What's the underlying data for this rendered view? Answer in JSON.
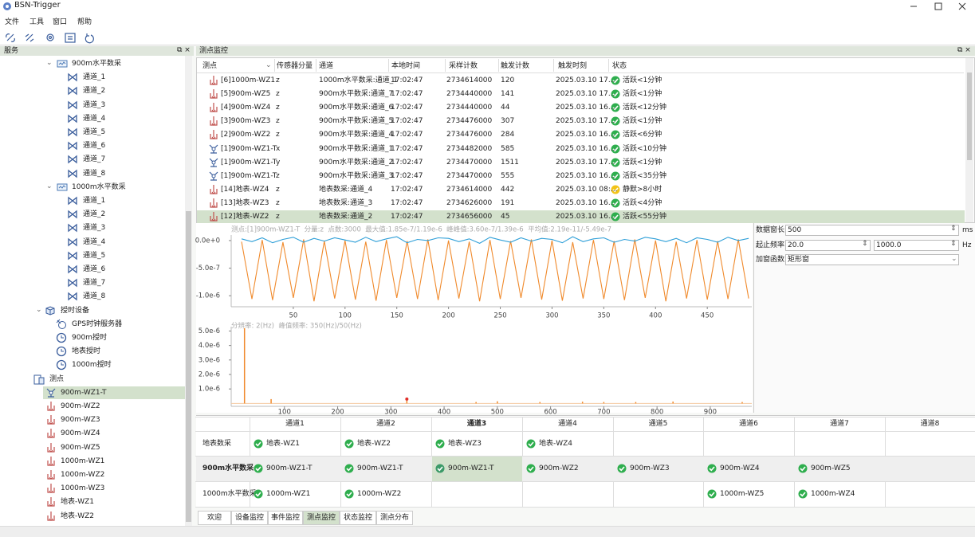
{
  "window": {
    "title": "BSN-Trigger"
  },
  "menu": [
    "文件",
    "工具",
    "窗口",
    "帮助"
  ],
  "left_panel": {
    "title": "服务",
    "tree": [
      {
        "label": "900m水平数采",
        "children": [
          "通道_1",
          "通道_2",
          "通道_3",
          "通道_4",
          "通道_5",
          "通道_6",
          "通道_7",
          "通道_8"
        ]
      },
      {
        "label": "1000m水平数采",
        "children": [
          "通道_1",
          "通道_2",
          "通道_3",
          "通道_4",
          "通道_5",
          "通道_6",
          "通道_7",
          "通道_8"
        ]
      },
      {
        "label": "授时设备",
        "children": [
          "GPS时钟服务器",
          "900m授时",
          "地表授时",
          "1000m授时"
        ]
      },
      {
        "label": "测点",
        "children": [
          "900m-WZ1-T",
          "900m-WZ2",
          "900m-WZ3",
          "900m-WZ4",
          "900m-WZ5",
          "1000m-WZ1",
          "1000m-WZ2",
          "1000m-WZ3",
          "地表-WZ1",
          "地表-WZ2"
        ]
      }
    ]
  },
  "monitor": {
    "title": "测点监控",
    "columns": [
      "测点",
      "传感器分量",
      "通道",
      "本地时间",
      "采样计数",
      "触发计数",
      "触发时刻",
      "状态"
    ],
    "rows": [
      {
        "point": "[6]1000m-WZ1",
        "component": "z",
        "channel": "1000m水平数采:通道_1",
        "local_time": "17:02:47",
        "sample_count": 2734614000,
        "trigger_count": 120,
        "trigger_time": "2025.03.10 17...",
        "status": "活跃<1分钟",
        "status_color": "#2fae4e"
      },
      {
        "point": "[5]900m-WZ5",
        "component": "z",
        "channel": "900m水平数采:通道_7",
        "local_time": "17:02:47",
        "sample_count": 2734440000,
        "trigger_count": 141,
        "trigger_time": "2025.03.10 17...",
        "status": "活跃<1分钟",
        "status_color": "#2fae4e"
      },
      {
        "point": "[4]900m-WZ4",
        "component": "z",
        "channel": "900m水平数采:通道_6",
        "local_time": "17:02:47",
        "sample_count": 2734440000,
        "trigger_count": 44,
        "trigger_time": "2025.03.10 16...",
        "status": "活跃<12分钟",
        "status_color": "#2fae4e"
      },
      {
        "point": "[3]900m-WZ3",
        "component": "z",
        "channel": "900m水平数采:通道_5",
        "local_time": "17:02:47",
        "sample_count": 2734476000,
        "trigger_count": 307,
        "trigger_time": "2025.03.10 17...",
        "status": "活跃<1分钟",
        "status_color": "#2fae4e"
      },
      {
        "point": "[2]900m-WZ2",
        "component": "z",
        "channel": "900m水平数采:通道_4",
        "local_time": "17:02:47",
        "sample_count": 2734476000,
        "trigger_count": 284,
        "trigger_time": "2025.03.10 16...",
        "status": "活跃<6分钟",
        "status_color": "#2fae4e"
      },
      {
        "point": "[1]900m-WZ1-T",
        "component": "x",
        "channel": "900m水平数采:通道_1",
        "local_time": "17:02:47",
        "sample_count": 2734482000,
        "trigger_count": 585,
        "trigger_time": "2025.03.10 16...",
        "status": "活跃<10分钟",
        "status_color": "#2fae4e"
      },
      {
        "point": "[1]900m-WZ1-T",
        "component": "y",
        "channel": "900m水平数采:通道_2",
        "local_time": "17:02:47",
        "sample_count": 2734470000,
        "trigger_count": 1511,
        "trigger_time": "2025.03.10 17...",
        "status": "活跃<1分钟",
        "status_color": "#2fae4e"
      },
      {
        "point": "[1]900m-WZ1-T",
        "component": "z",
        "channel": "900m水平数采:通道_3",
        "local_time": "17:02:47",
        "sample_count": 2734470000,
        "trigger_count": 555,
        "trigger_time": "2025.03.10 16...",
        "status": "活跃<35分钟",
        "status_color": "#2fae4e"
      },
      {
        "point": "[14]地表-WZ4",
        "component": "z",
        "channel": "地表数采:通道_4",
        "local_time": "17:02:47",
        "sample_count": 2734614000,
        "trigger_count": 442,
        "trigger_time": "2025.03.10 08:...",
        "status": "静默>8小时",
        "status_color": "#f2c318"
      },
      {
        "point": "[13]地表-WZ3",
        "component": "z",
        "channel": "地表数采:通道_3",
        "local_time": "17:02:47",
        "sample_count": 2734626000,
        "trigger_count": 191,
        "trigger_time": "2025.03.10 16...",
        "status": "活跃<4分钟",
        "status_color": "#2fae4e"
      },
      {
        "point": "[12]地表-WZ2",
        "component": "z",
        "channel": "地表数采:通道_2",
        "local_time": "17:02:47",
        "sample_count": 2734656000,
        "trigger_count": 45,
        "trigger_time": "2025.03.10 16...",
        "status": "活跃<55分钟",
        "status_color": "#2fae4e"
      }
    ]
  },
  "params": {
    "window_label": "数据窗长",
    "window_value": "500",
    "window_unit": "ms",
    "freq_label": "起止频率",
    "freq_start": "20.0",
    "freq_end": "1000.0",
    "freq_unit": "Hz",
    "func_label": "加窗函数",
    "func_value": "矩形窗"
  },
  "channel_grid": {
    "columns": [
      "通道1",
      "通道2",
      "通道3",
      "通道4",
      "通道5",
      "通道6",
      "通道7",
      "通道8"
    ],
    "rows": [
      {
        "name": "地表数采",
        "cells": [
          "地表-WZ1",
          "地表-WZ2",
          "地表-WZ3",
          "地表-WZ4",
          null,
          null,
          null,
          null
        ]
      },
      {
        "name": "900m水平数采",
        "cells": [
          "900m-WZ1-T",
          "900m-WZ1-T",
          "900m-WZ1-T",
          "900m-WZ2",
          "900m-WZ3",
          "900m-WZ4",
          "900m-WZ5",
          null
        ]
      },
      {
        "name": "1000m水平数采",
        "cells": [
          "1000m-WZ1",
          "1000m-WZ2",
          null,
          null,
          null,
          "1000m-WZ5",
          "1000m-WZ4",
          null
        ]
      }
    ]
  },
  "tabs": [
    "欢迎",
    "设备监控",
    "事件监控",
    "测点监控",
    "状态监控",
    "测点分布"
  ],
  "chart_data": [
    {
      "type": "line",
      "subtitle": "测点:[1]900m-WZ1-T  分量:z  点数:3000  最大值:1.85e-7/1.19e-6  峰峰值:3.60e-7/1.39e-6  平均值:2.19e-11/-5.49e-7",
      "x": [
        0,
        10,
        20,
        30,
        40,
        50,
        60,
        70,
        80,
        90,
        100,
        110,
        120,
        130,
        140,
        150,
        160,
        170,
        180,
        190,
        200,
        210,
        220,
        230,
        240,
        250,
        260,
        270,
        280,
        290,
        300,
        310,
        320,
        330,
        340,
        350,
        360,
        370,
        380,
        390,
        400,
        410,
        420,
        430,
        440,
        450,
        460,
        470,
        480,
        490
      ],
      "series": [
        {
          "color": "#f08a2c",
          "values": [
            -2e-08,
            -1.06e-06,
            1e-08,
            -1.08e-06,
            -3e-08,
            -1.04e-06,
            2e-08,
            -1.1e-06,
            -1e-08,
            -1.05e-06,
            0,
            -1.07e-06,
            -2e-08,
            -1.09e-06,
            1e-08,
            -1.04e-06,
            -1e-08,
            -1.06e-06,
            2e-08,
            -1.08e-06,
            0,
            -1.05e-06,
            -2e-08,
            -1.1e-06,
            1e-08,
            -1.06e-06,
            -1e-08,
            -1.04e-06,
            2e-08,
            -1.07e-06,
            0,
            -1.09e-06,
            -3e-08,
            -1.05e-06,
            1e-08,
            -1.06e-06,
            -1e-08,
            -1.08e-06,
            2e-08,
            -1.04e-06,
            0,
            -1.1e-06,
            -2e-08,
            -1.05e-06,
            1e-08,
            -1.07e-06,
            -1e-08,
            -1.06e-06,
            2e-08,
            -1.05e-06
          ]
        },
        {
          "color": "#2e9fd8",
          "values": [
            3e-08,
            -2e-08,
            5e-08,
            -4e-08,
            2e-08,
            6e-08,
            -3e-08,
            4e-08,
            -1e-08,
            5e-08,
            1e-08,
            -3e-08,
            6e-08,
            -2e-08,
            3e-08,
            7e-08,
            -4e-08,
            2e-08,
            0,
            5e-08,
            4e-08,
            -2e-08,
            3e-08,
            -5e-08,
            6e-08,
            1e-08,
            -3e-08,
            5e-08,
            -1e-08,
            4e-08,
            2e-08,
            -4e-08,
            7e-08,
            -2e-08,
            3e-08,
            5e-08,
            -3e-08,
            2e-08,
            -1e-08,
            6e-08,
            3e-08,
            -2e-08,
            4e-08,
            -4e-08,
            5e-08,
            2e-08,
            -3e-08,
            6e-08,
            0,
            4e-08
          ]
        }
      ],
      "xlim": [
        -10,
        493
      ],
      "ylim": [
        -1.2e-06,
        1e-07
      ],
      "xticks": [
        50,
        100,
        150,
        200,
        250,
        300,
        350,
        400,
        450
      ],
      "yticks": [
        {
          "value": 0,
          "label": "0.0e+0"
        },
        {
          "value": -5e-07,
          "label": "-5.0e-7"
        },
        {
          "value": -1e-06,
          "label": "-1.0e-6"
        }
      ],
      "grid": false
    },
    {
      "type": "stem",
      "subtitle": "分辨率: 2(Hz)  峰值频率: 350(Hz)/50(Hz)",
      "x": [
        25,
        75,
        330,
        460,
        500,
        580,
        660,
        700,
        760,
        830,
        960
      ],
      "series": [
        {
          "color": "#f08a2c",
          "values": [
            5.2e-06,
            3e-07,
            2e-07,
            1e-07,
            1.5e-07,
            1e-07,
            1.2e-07,
            1e-07,
            1e-07,
            1.3e-07,
            1e-07
          ]
        },
        {
          "color": "#e0302a",
          "values": [
            null,
            null,
            3e-07,
            null,
            null,
            null,
            null,
            null,
            null,
            null,
            null
          ]
        }
      ],
      "xlim": [
        0,
        978
      ],
      "ylim": [
        -2e-07,
        5.3e-06
      ],
      "xticks": [
        100,
        200,
        300,
        400,
        500,
        600,
        700,
        800,
        900
      ],
      "yticks": [
        {
          "value": 5e-06,
          "label": "5.0e-6"
        },
        {
          "value": 4e-06,
          "label": "4.0e-6"
        },
        {
          "value": 3e-06,
          "label": "3.0e-6"
        },
        {
          "value": 2e-06,
          "label": "2.0e-6"
        },
        {
          "value": 1e-06,
          "label": "1.0e-6"
        }
      ],
      "grid": false
    }
  ]
}
